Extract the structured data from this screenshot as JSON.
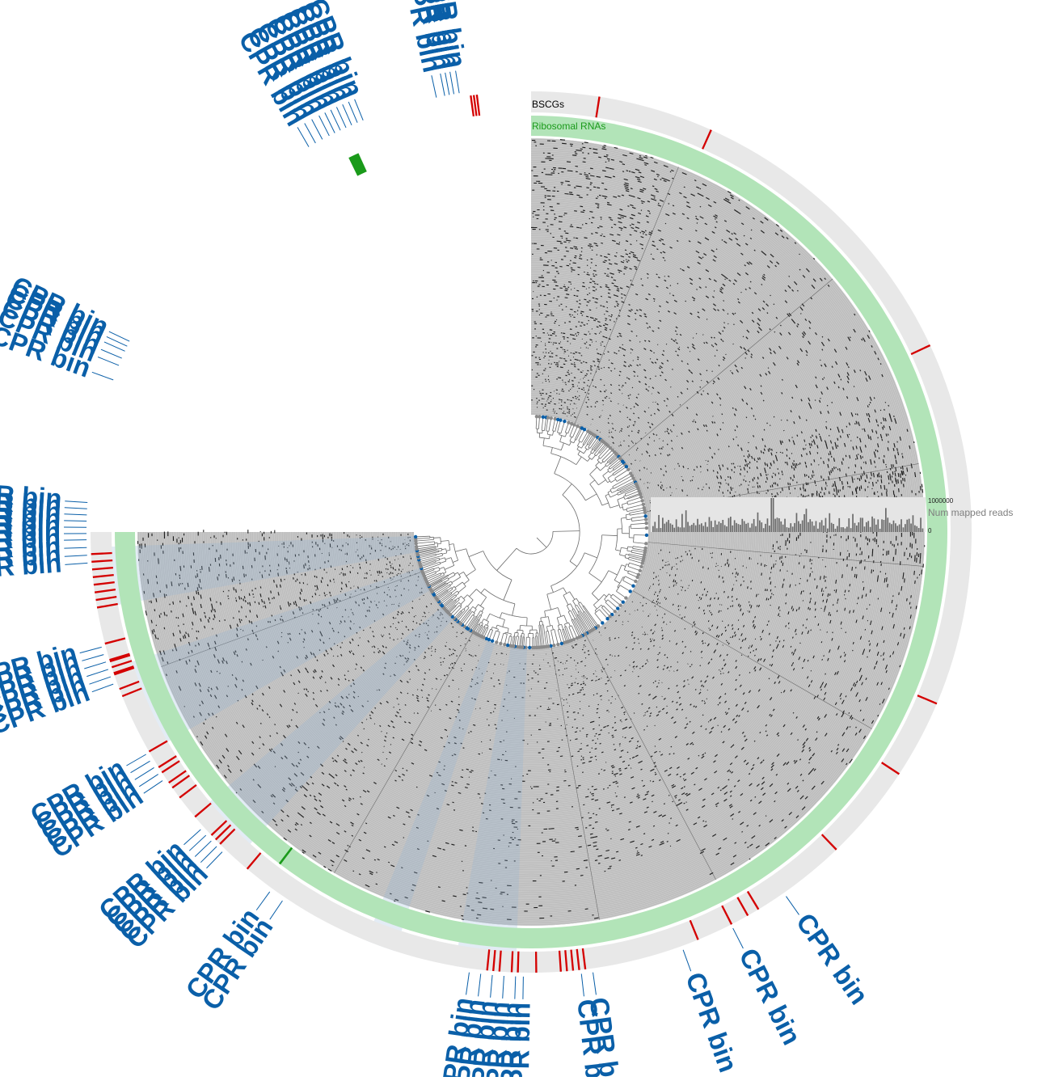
{
  "layers": {
    "bscg": {
      "label": "BSCGs",
      "color": "#000000"
    },
    "rrna": {
      "label": "Ribosomal RNAs",
      "color": "#1a9a1a"
    },
    "reads": {
      "label": "Num mapped reads",
      "max_label": "1000000",
      "min_label": "0",
      "color": "#7f7f7f"
    }
  },
  "colors": {
    "background": "#ffffff",
    "coverage_bg": "#bdbdbd",
    "coverage_mark": "#000000",
    "rrna_ring": "#b2e4b8",
    "rrna_mark": "#1a9a1a",
    "bscg_ring": "#e8e8e8",
    "bscg_mark": "#d40000",
    "cpr": "#0a5fa8",
    "tree": "#6a6a6a"
  },
  "cpr_bin_label": "CPR bin"
}
